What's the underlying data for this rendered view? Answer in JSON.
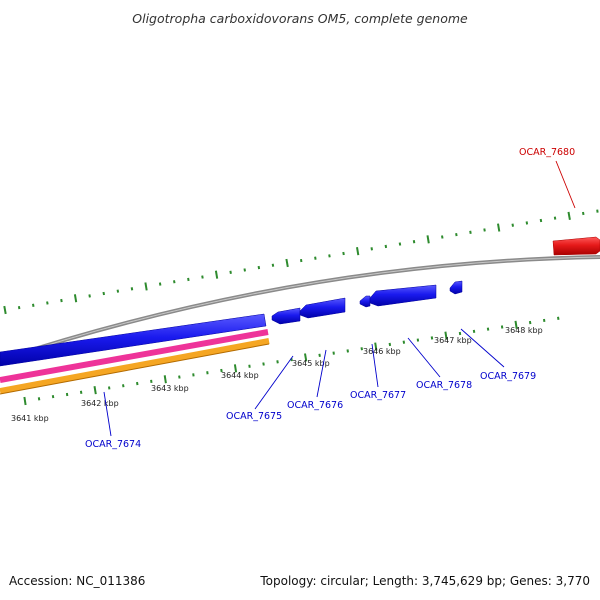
{
  "title": "Oligotropha carboxidovorans OM5, complete genome",
  "footer": {
    "accession": "Accession: NC_011386",
    "summary": "Topology: circular; Length: 3,745,629 bp; Genes: 3,770"
  },
  "kbp_labels": [
    "3641 kbp",
    "3642 kbp",
    "3643 kbp",
    "3644 kbp",
    "3645 kbp",
    "3646 kbp",
    "3647 kbp",
    "3648 kbp"
  ],
  "genes": [
    {
      "name": "OCAR_7674",
      "color": "#0000cc",
      "strand": "reverse"
    },
    {
      "name": "OCAR_7675",
      "color": "#0000cc",
      "strand": "reverse"
    },
    {
      "name": "OCAR_7676",
      "color": "#0000cc",
      "strand": "reverse"
    },
    {
      "name": "OCAR_7677",
      "color": "#0000cc",
      "strand": "reverse"
    },
    {
      "name": "OCAR_7678",
      "color": "#0000cc",
      "strand": "reverse"
    },
    {
      "name": "OCAR_7679",
      "color": "#0000cc",
      "strand": "reverse"
    },
    {
      "name": "OCAR_7680",
      "color": "#cc0000",
      "strand": "forward"
    }
  ],
  "colors": {
    "backbone": "#8a8a8a",
    "tick": "#2e8b2e",
    "forward_gene": "#e61a1a",
    "reverse_gene": "#1a1aee",
    "pink_track": "#ee3399",
    "orange_track": "#f5a623"
  }
}
